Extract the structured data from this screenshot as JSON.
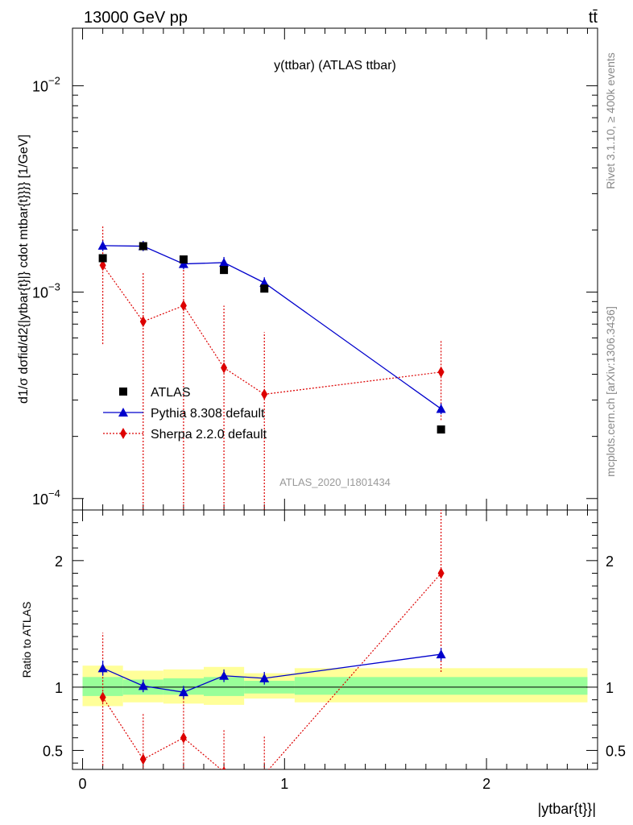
{
  "header": {
    "beam": "13000 GeV pp",
    "process": "tt̄",
    "analysis_title": "y(ttbar) (ATLAS ttbar)",
    "analysis_id": "ATLAS_2020_I1801434",
    "rivet": "Rivet 3.1.10, ≥ 400k events",
    "source": "mcplots.cern.ch [arXiv:1306.3436]"
  },
  "chart_data": [
    {
      "type": "scatter",
      "title": "y(ttbar) (ATLAS ttbar)",
      "ylabel": "d1/σ dσfid/d2{|ytbar{t}|} cdot mtbar{t}}}} [1/GeV]",
      "yscale": "log",
      "xlim": [
        -0.05,
        2.55
      ],
      "ylim": [
        8.8e-05,
        0.019
      ],
      "y_ticks": [
        {
          "value": 0.01,
          "base": "10",
          "exp": "−2"
        },
        {
          "value": 0.001,
          "base": "10",
          "exp": "−3"
        },
        {
          "value": 0.0001,
          "base": "10",
          "exp": "−4"
        }
      ],
      "legend_position": "lower-left",
      "series": [
        {
          "name": "ATLAS",
          "color": "#000000",
          "marker": "square",
          "x": [
            0.1,
            0.3,
            0.5,
            0.7,
            0.9,
            1.775
          ],
          "y": [
            0.00146,
            0.00167,
            0.00144,
            0.00128,
            0.00104,
            0.000216
          ]
        },
        {
          "name": "Pythia 8.308 default",
          "color": "#0000cc",
          "marker": "triangle",
          "line": "solid",
          "x": [
            0.1,
            0.3,
            0.5,
            0.7,
            0.9,
            1.775
          ],
          "y": [
            0.00168,
            0.00167,
            0.00137,
            0.00139,
            0.00111,
            0.000272
          ],
          "y_low": [
            0.00158,
            0.00158,
            0.00129,
            0.0013,
            0.00104,
            0.000256
          ],
          "y_high": [
            0.00178,
            0.00177,
            0.00145,
            0.00148,
            0.00118,
            0.000289
          ],
          "x_edges": [
            0.0,
            0.2,
            0.4,
            0.6,
            0.8,
            1.05,
            2.5
          ]
        },
        {
          "name": "Sherpa 2.2.0 default",
          "color": "#dd0000",
          "marker": "diamond",
          "line": "dotted",
          "x": [
            0.1,
            0.3,
            0.5,
            0.7,
            0.9,
            1.775
          ],
          "y": [
            0.00135,
            0.00072,
            0.00086,
            0.00043,
            0.00032,
            0.00041
          ],
          "y_low": [
            0.00056,
            1e-05,
            1e-05,
            1e-05,
            1e-05,
            0.00024
          ],
          "y_high": [
            0.0021,
            0.00125,
            0.0014,
            0.00086,
            0.00064,
            0.00058
          ]
        }
      ]
    },
    {
      "type": "scatter",
      "ylabel": "Ratio to ATLAS",
      "xlabel": "|ytbar{t}}|",
      "xlim": [
        -0.05,
        2.55
      ],
      "ylim": [
        0.35,
        2.4
      ],
      "x_ticks": [
        "0",
        "1",
        "2"
      ],
      "y_ticks": [
        "0.5",
        "1",
        "2"
      ],
      "bands": {
        "x_edges": [
          0.0,
          0.2,
          0.4,
          0.6,
          0.8,
          1.05,
          2.5
        ],
        "yellow": {
          "color": "#ffff99",
          "low": [
            0.85,
            0.88,
            0.87,
            0.86,
            0.91,
            0.88
          ],
          "high": [
            1.17,
            1.13,
            1.14,
            1.16,
            1.11,
            1.15
          ]
        },
        "green": {
          "color": "#99ff99",
          "low": [
            0.93,
            0.94,
            0.94,
            0.93,
            0.95,
            0.94
          ],
          "high": [
            1.08,
            1.06,
            1.07,
            1.08,
            1.05,
            1.08
          ]
        }
      },
      "series": [
        {
          "name": "Pythia 8.308 default",
          "color": "#0000cc",
          "x": [
            0.1,
            0.3,
            0.5,
            0.7,
            0.9,
            1.775
          ],
          "y": [
            1.15,
            1.01,
            0.96,
            1.09,
            1.07,
            1.26
          ],
          "y_low": [
            1.09,
            0.96,
            0.91,
            1.04,
            1.02,
            1.21
          ],
          "y_high": [
            1.21,
            1.06,
            1.01,
            1.14,
            1.12,
            1.31
          ]
        },
        {
          "name": "Sherpa 2.2.0 default",
          "color": "#dd0000",
          "x": [
            0.1,
            0.3,
            0.5,
            0.7,
            0.9,
            1.775
          ],
          "y": [
            0.92,
            0.43,
            0.6,
            0.33,
            0.31,
            1.9
          ],
          "y_low": [
            0.38,
            0.01,
            0.01,
            0.01,
            0.01,
            1.12
          ],
          "y_high": [
            1.43,
            0.8,
            0.98,
            0.66,
            0.62,
            2.7
          ]
        }
      ]
    }
  ]
}
